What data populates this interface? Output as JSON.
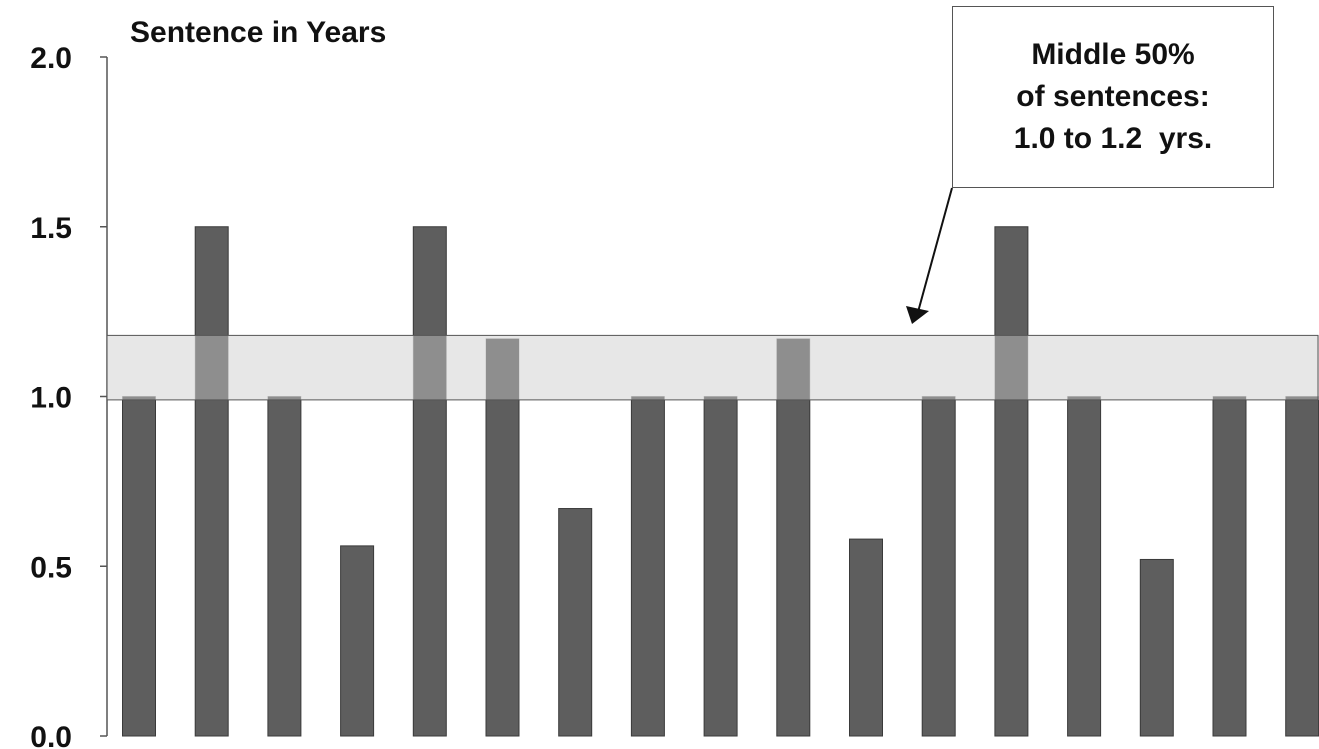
{
  "chart_data": {
    "type": "bar",
    "ylabel": "Sentence in Years",
    "ylim": [
      0,
      2.0
    ],
    "yticks": [
      "0.0",
      "0.5",
      "1.0",
      "1.5",
      "2.0"
    ],
    "values": [
      1.0,
      1.5,
      1.0,
      0.56,
      1.5,
      1.17,
      0.67,
      1.0,
      1.0,
      1.17,
      0.58,
      1.0,
      1.5,
      1.0,
      0.52,
      1.0,
      1.0
    ],
    "band": {
      "from": 0.99,
      "to": 1.18
    },
    "annotation": [
      "Middle 50%",
      "of sentences:",
      "1.0 to 1.2  yrs."
    ],
    "bar_color": "#5e5e5e",
    "band_color": "#e3e3e3",
    "overlap_color": "#8e8e8e"
  }
}
